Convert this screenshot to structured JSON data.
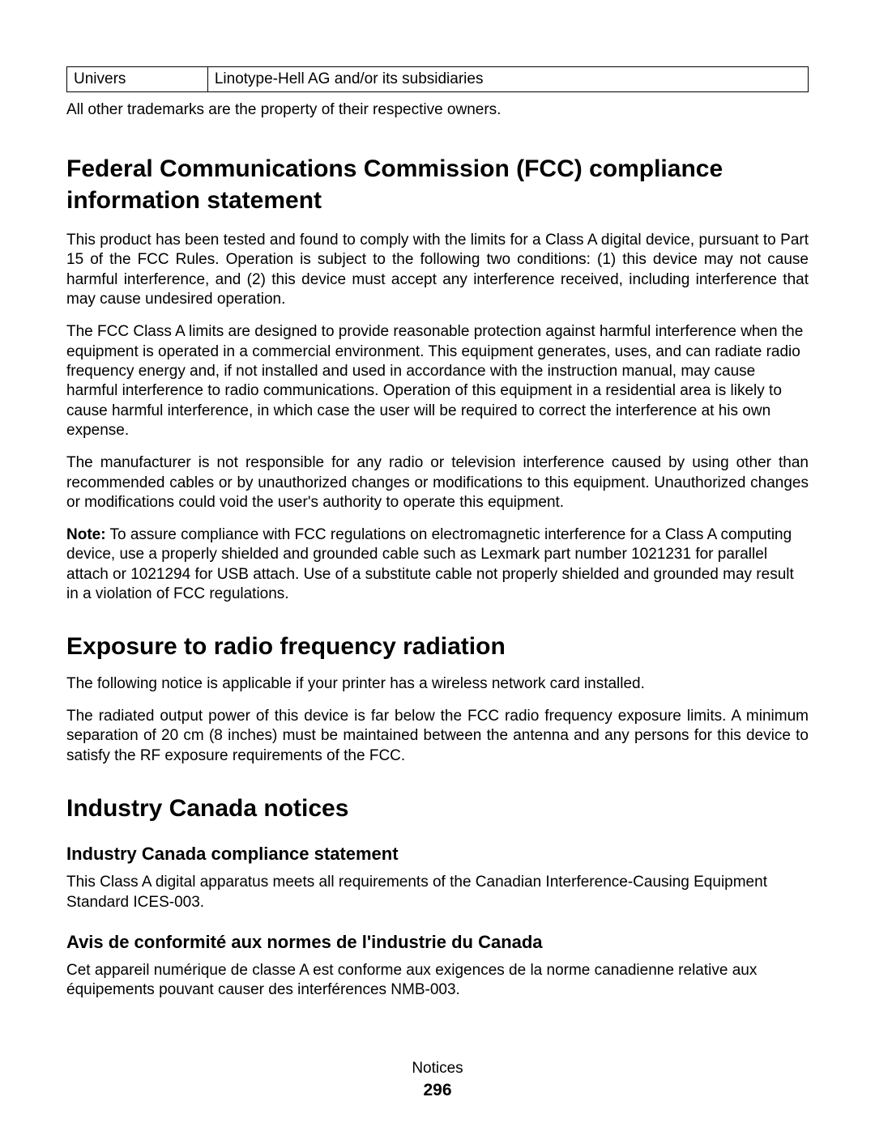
{
  "table": {
    "col0": "Univers",
    "col1": "Linotype-Hell AG and/or its subsidiaries"
  },
  "trademark_note": "All other trademarks are the property of their respective owners.",
  "h1": "Federal Communications Commission (FCC) compliance information statement",
  "fcc": {
    "p1": "This product has been tested and found to comply with the limits for a Class A digital device, pursuant to Part 15 of the FCC Rules. Operation is subject to the following two conditions: (1) this device may not cause harmful interference, and (2) this device must accept any interference received, including interference that may cause undesired operation.",
    "p2": "The FCC Class A limits are designed to provide reasonable protection against harmful interference when the equipment is operated in a commercial environment. This equipment generates, uses, and can radiate radio frequency energy and, if not installed and used in accordance with the instruction manual, may cause harmful interference to radio communications. Operation of this equipment in a residential area is likely to cause harmful interference, in which case the user will be required to correct the interference at his own expense.",
    "p3": "The manufacturer is not responsible for any radio or television interference caused by using other than recommended cables or by unauthorized changes or modifications to this equipment. Unauthorized changes or modifications could void the user's authority to operate this equipment.",
    "note_label": "Note:",
    "note_body": " To assure compliance with FCC regulations on electromagnetic interference for a Class A computing device, use a properly shielded and grounded cable such as Lexmark part number 1021231 for parallel attach or 1021294 for USB attach. Use of a substitute cable not properly shielded and grounded may result in a violation of FCC regulations."
  },
  "h2_rf": "Exposure to radio frequency radiation",
  "rf": {
    "p1": "The following notice is applicable if your printer has a wireless network card installed.",
    "p2": "The radiated output power of this device is far below the FCC radio frequency exposure limits. A minimum separation of 20 cm (8 inches) must be maintained between the antenna and any persons for this device to satisfy the RF exposure requirements of the FCC."
  },
  "h2_ic": "Industry Canada notices",
  "ic": {
    "h3a": "Industry Canada compliance statement",
    "pa": "This Class A digital apparatus meets all requirements of the Canadian Interference-Causing Equipment Standard ICES-003.",
    "h3b": "Avis de conformité aux normes de l'industrie du Canada",
    "pb": "Cet appareil numérique de classe A est conforme aux exigences de la norme canadienne relative aux équipements pouvant causer des interférences NMB-003."
  },
  "footer": {
    "label": "Notices",
    "page": "296"
  }
}
